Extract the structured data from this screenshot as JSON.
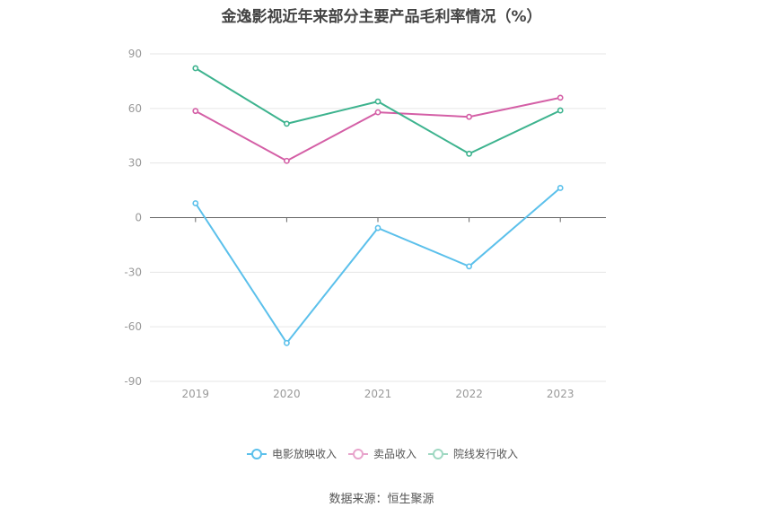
{
  "chart_data": {
    "type": "line",
    "title": "金逸影视近年来部分主要产品毛利率情况（%）",
    "categories": [
      "2019",
      "2020",
      "2021",
      "2022",
      "2023"
    ],
    "series": [
      {
        "name": "电影放映收入",
        "color": "#5bc0eb",
        "values": [
          7.9,
          -68.9,
          -5.7,
          -26.8,
          16.3
        ]
      },
      {
        "name": "卖品收入",
        "color": "#d45fa6",
        "values": [
          58.6,
          31.2,
          57.9,
          55.4,
          65.9
        ]
      },
      {
        "name": "院线发行收入",
        "color": "#3db38e",
        "values": [
          82.1,
          51.6,
          63.8,
          35.1,
          58.9
        ]
      }
    ],
    "ylim": [
      -90,
      90
    ],
    "yticks": [
      90,
      60,
      30,
      0,
      -30,
      -60,
      -90
    ],
    "grid": true,
    "legend_position": "bottom"
  },
  "source_text": "数据来源：恒生聚源"
}
